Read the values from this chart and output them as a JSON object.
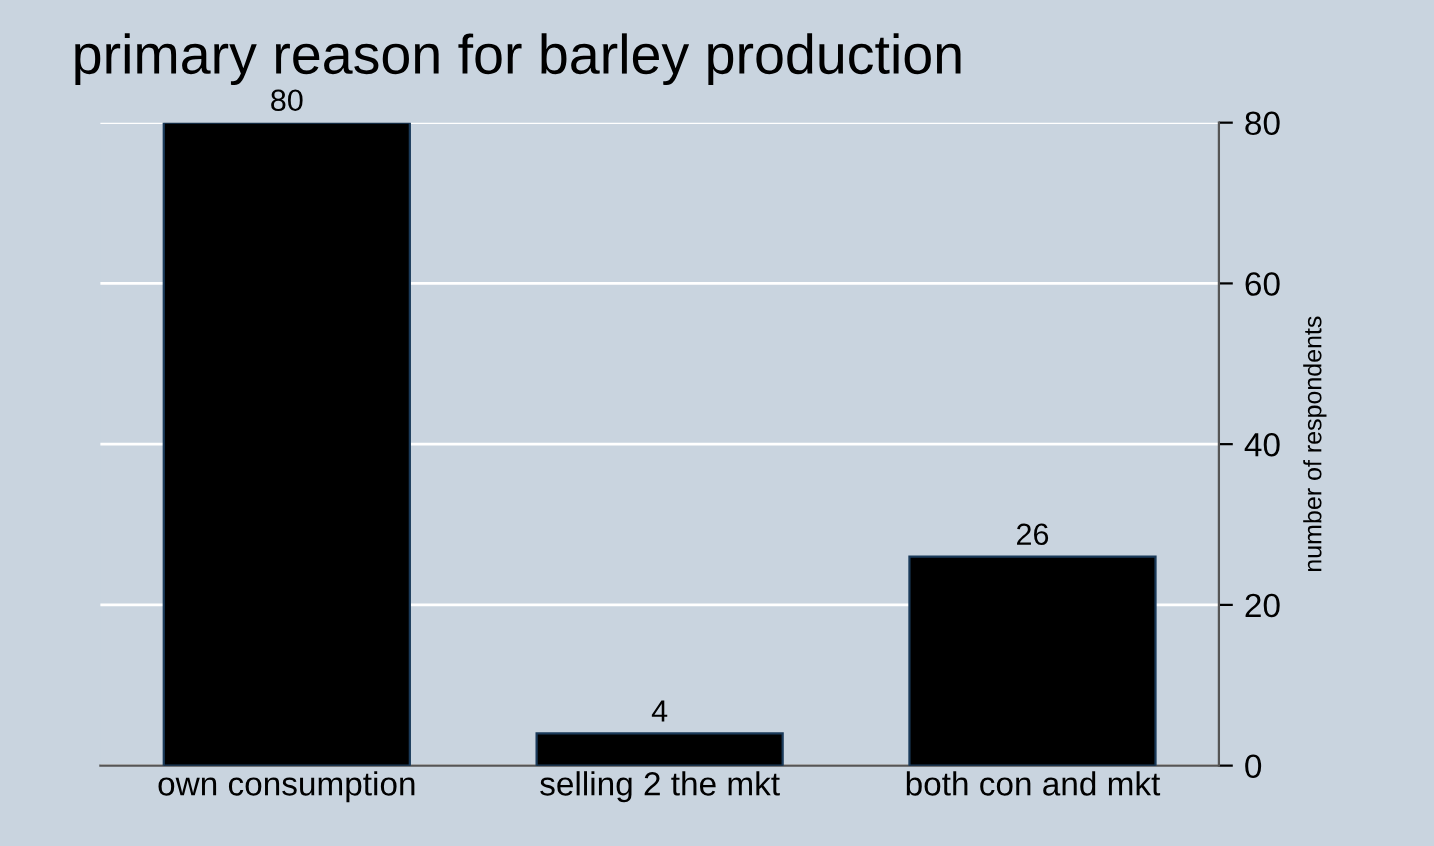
{
  "chart_data": {
    "type": "bar",
    "title": "primary reason for barley production",
    "ylabel": "number of respondents",
    "categories": [
      "own consumption",
      "selling 2 the mkt",
      "both con and mkt"
    ],
    "values": [
      80,
      4,
      26
    ],
    "color": "#000000",
    "ylim": [
      0,
      80
    ],
    "yticks": [
      0,
      20,
      40,
      60,
      80
    ],
    "grid": "y",
    "data_labels": true
  }
}
